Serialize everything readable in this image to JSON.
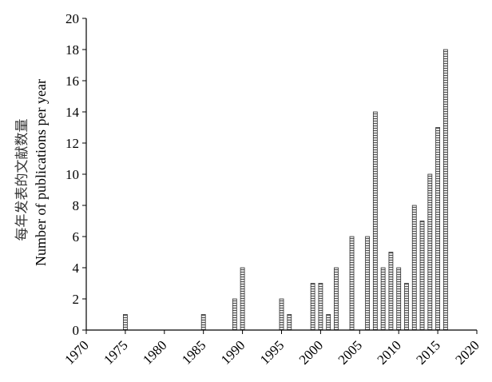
{
  "chart_data": {
    "type": "bar",
    "title": "",
    "xlabel": "",
    "ylabel": "Number of publications per year",
    "ylabel_cn": "每年发表的文献数量",
    "xlim": [
      1970,
      2020
    ],
    "ylim": [
      0,
      20
    ],
    "x_ticks": [
      "1970",
      "1975",
      "1980",
      "1985",
      "1990",
      "1995",
      "2000",
      "2005",
      "2010",
      "2015",
      "2020"
    ],
    "y_ticks": [
      "0",
      "2",
      "4",
      "6",
      "8",
      "10",
      "12",
      "14",
      "16",
      "18",
      "20"
    ],
    "grid": false,
    "legend": "none",
    "bar_style": "gray hatched",
    "x": [
      1975,
      1985,
      1989,
      1990,
      1995,
      1996,
      1999,
      2000,
      2001,
      2002,
      2004,
      2006,
      2007,
      2008,
      2009,
      2010,
      2011,
      2012,
      2013,
      2014,
      2015,
      2016
    ],
    "values": [
      1,
      1,
      2,
      4,
      2,
      1,
      3,
      3,
      1,
      4,
      6,
      6,
      14,
      4,
      5,
      4,
      3,
      8,
      7,
      10,
      13,
      18
    ]
  }
}
